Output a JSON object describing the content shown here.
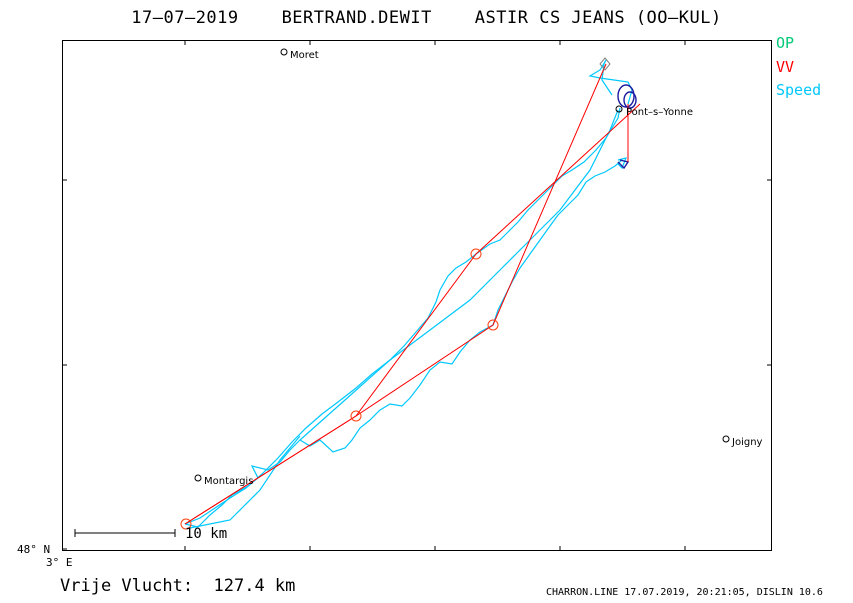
{
  "header": {
    "title": "17–07–2019    BERTRAND.DEWIT    ASTIR CS JEANS (OO–KUL)"
  },
  "legend": {
    "op": "OP",
    "vv": "VV",
    "speed": "Speed",
    "colors": {
      "op": "#00c878",
      "vv": "#ff0000",
      "speed": "#00c8ff",
      "climb": "#1a1aa0"
    }
  },
  "towns": [
    {
      "name": "Moret"
    },
    {
      "name": "Pont–s–Yonne"
    },
    {
      "name": "Joigny"
    },
    {
      "name": "Montargis"
    }
  ],
  "axes": {
    "lat_label": "48° N",
    "lon_label": "3° E"
  },
  "scale": {
    "label": "10 km"
  },
  "stats": {
    "distance_label": "Vrije Vlucht:  127.4 km"
  },
  "footer": {
    "text": "CHARRON.LINE 17.07.2019, 20:21:05, DISLIN 10.6"
  }
}
